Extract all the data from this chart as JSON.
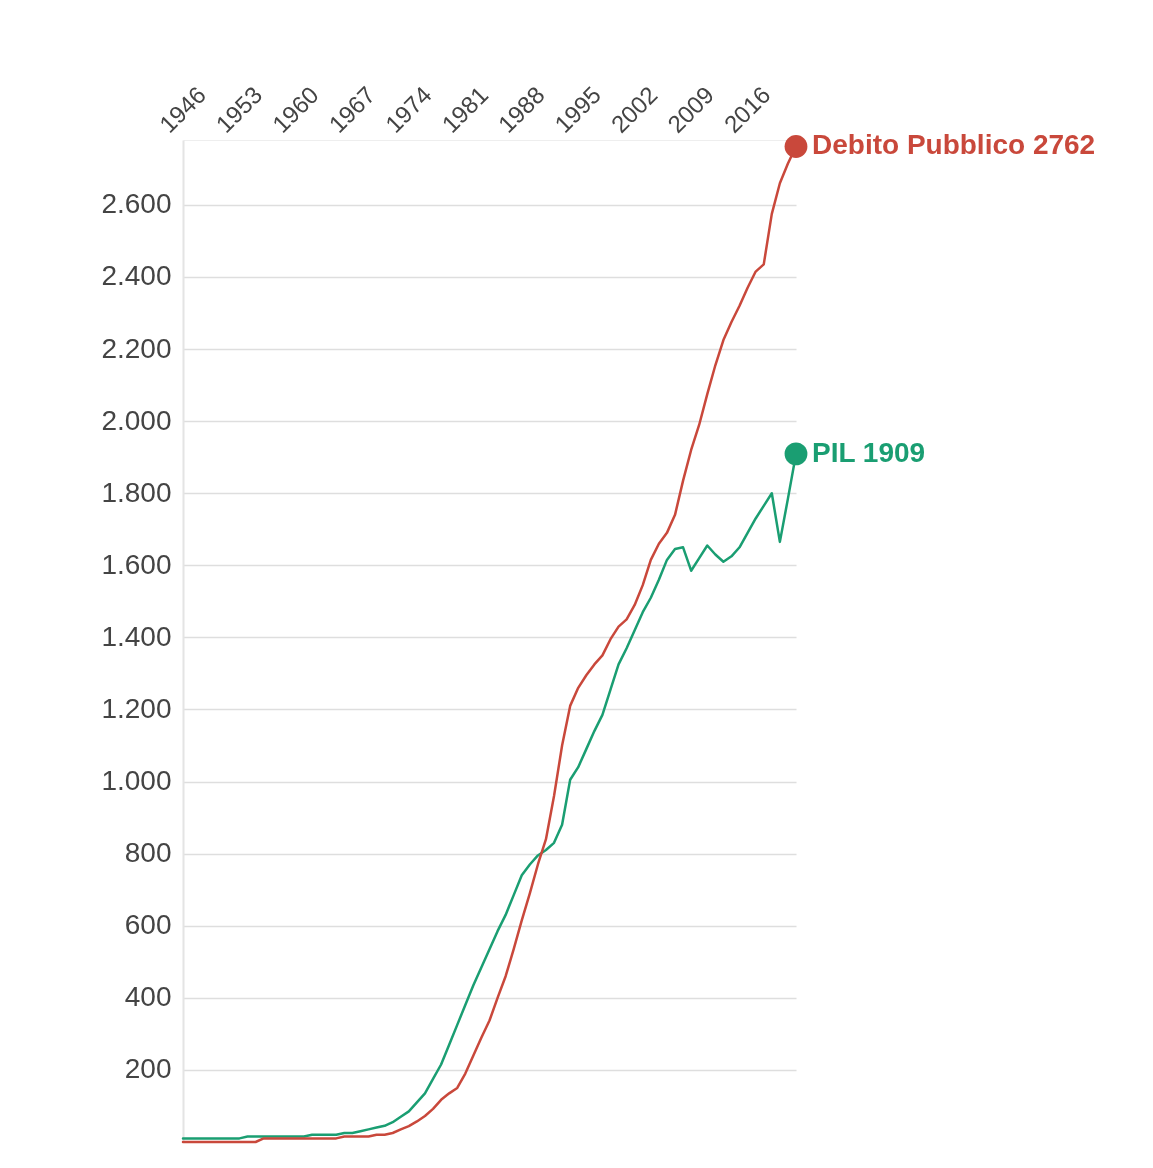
{
  "chart_data": {
    "type": "line",
    "x": [
      1946,
      1947,
      1948,
      1949,
      1950,
      1951,
      1952,
      1953,
      1954,
      1955,
      1956,
      1957,
      1958,
      1959,
      1960,
      1961,
      1962,
      1963,
      1964,
      1965,
      1966,
      1967,
      1968,
      1969,
      1970,
      1971,
      1972,
      1973,
      1974,
      1975,
      1976,
      1977,
      1978,
      1979,
      1980,
      1981,
      1982,
      1983,
      1984,
      1985,
      1986,
      1987,
      1988,
      1989,
      1990,
      1991,
      1992,
      1993,
      1994,
      1995,
      1996,
      1997,
      1998,
      1999,
      2000,
      2001,
      2002,
      2003,
      2004,
      2005,
      2006,
      2007,
      2008,
      2009,
      2010,
      2011,
      2012,
      2013,
      2014,
      2015,
      2016,
      2017,
      2018,
      2019,
      2020,
      2021,
      2022
    ],
    "series": [
      {
        "name": "Debito Pubblico",
        "color": "#c9483b",
        "values": [
          0,
          0,
          0,
          0,
          0,
          0,
          0,
          0,
          0,
          0,
          10,
          10,
          10,
          10,
          10,
          10,
          10,
          10,
          10,
          10,
          15,
          15,
          15,
          15,
          20,
          20,
          25,
          35,
          44,
          57,
          72,
          92,
          117,
          135,
          150,
          190,
          240,
          290,
          337,
          400,
          460,
          535,
          615,
          690,
          770,
          840,
          960,
          1100,
          1210,
          1260,
          1295,
          1325,
          1350,
          1395,
          1430,
          1450,
          1490,
          1545,
          1615,
          1660,
          1690,
          1740,
          1835,
          1920,
          1990,
          2075,
          2155,
          2225,
          2275,
          2320,
          2370,
          2415,
          2435,
          2575,
          2660,
          2715,
          2762
        ],
        "value_labels": [
          null,
          null,
          null,
          null,
          null,
          null,
          null,
          null,
          null,
          null,
          null,
          null,
          null,
          null,
          null,
          null,
          null,
          null,
          null,
          null,
          null,
          null,
          null,
          null,
          null,
          null,
          null,
          null,
          null,
          null,
          null,
          null,
          null,
          null,
          null,
          null,
          null,
          null,
          null,
          null,
          null,
          null,
          null,
          null,
          null,
          null,
          null,
          null,
          null,
          null,
          null,
          null,
          null,
          null,
          null,
          null,
          null,
          null,
          null,
          null,
          null,
          null,
          null,
          null,
          null,
          null,
          null,
          null,
          null,
          null,
          null,
          null,
          null,
          null,
          null,
          null,
          "2762"
        ]
      },
      {
        "name": "PIL",
        "color": "#1a9e72",
        "values": [
          10,
          10,
          10,
          10,
          10,
          10,
          10,
          10,
          15,
          15,
          15,
          15,
          15,
          15,
          15,
          15,
          20,
          20,
          20,
          20,
          25,
          25,
          30,
          35,
          40,
          45,
          55,
          70,
          85,
          110,
          135,
          175,
          215,
          270,
          325,
          380,
          435,
          485,
          535,
          585,
          630,
          685,
          740,
          770,
          795,
          810,
          830,
          880,
          1005,
          1040,
          1090,
          1140,
          1185,
          1255,
          1325,
          1370,
          1420,
          1470,
          1510,
          1560,
          1615,
          1645,
          1650,
          1585,
          1620,
          1655,
          1630,
          1610,
          1625,
          1650,
          1690,
          1730,
          1765,
          1800,
          1665,
          1785,
          1909
        ],
        "value_labels": [
          null,
          null,
          null,
          null,
          null,
          null,
          null,
          null,
          null,
          null,
          null,
          null,
          null,
          null,
          null,
          null,
          null,
          null,
          null,
          null,
          null,
          null,
          null,
          null,
          null,
          null,
          null,
          null,
          null,
          null,
          null,
          null,
          null,
          null,
          null,
          null,
          null,
          null,
          null,
          null,
          null,
          null,
          null,
          null,
          null,
          null,
          null,
          null,
          null,
          null,
          null,
          null,
          null,
          null,
          null,
          null,
          null,
          null,
          null,
          null,
          null,
          null,
          null,
          null,
          null,
          null,
          null,
          null,
          null,
          null,
          null,
          null,
          null,
          null,
          null,
          null,
          "1909"
        ]
      }
    ],
    "xlim": [
      1946,
      2022
    ],
    "xticks": [
      1946,
      1953,
      1960,
      1967,
      1974,
      1981,
      1988,
      1995,
      2002,
      2009,
      2016
    ],
    "ylim": [
      0,
      2780
    ],
    "yticks": [
      200,
      400,
      600,
      800,
      {
        "value": 1000,
        "label": "1.000"
      },
      {
        "value": 1200,
        "label": "1.200"
      },
      {
        "value": 1400,
        "label": "1.400"
      },
      {
        "value": 1600,
        "label": "1.600"
      },
      {
        "value": 1800,
        "label": "1.800"
      },
      {
        "value": 2000,
        "label": "2.000"
      },
      {
        "value": 2200,
        "label": "2.200"
      },
      {
        "value": 2400,
        "label": "2.400"
      },
      {
        "value": 2600,
        "label": "2.600"
      }
    ],
    "grid": "y"
  }
}
